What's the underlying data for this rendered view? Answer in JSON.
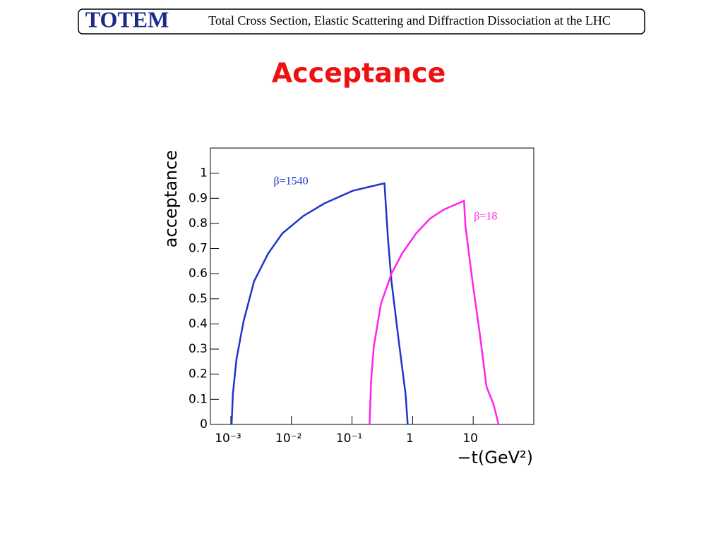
{
  "header": {
    "logo": "TOTEM",
    "text": "Total Cross Section, Elastic Scattering and Diffraction Dissociation at the LHC"
  },
  "chart_data": {
    "type": "line",
    "title": "Acceptance",
    "x_label": "−t(GeV²)",
    "y_label": "acceptance",
    "xscale": "log",
    "xlim": [
      0.00046,
      100
    ],
    "ylim": [
      0,
      1.1
    ],
    "xticks": [
      {
        "value": 0.001,
        "label": "10⁻³"
      },
      {
        "value": 0.01,
        "label": "10⁻²"
      },
      {
        "value": 0.1,
        "label": "10⁻¹"
      },
      1,
      10
    ],
    "yticks": [
      0,
      0.1,
      0.2,
      0.3,
      0.4,
      0.5,
      0.6,
      0.7,
      0.8,
      0.9,
      1
    ],
    "series": [
      {
        "name": "β=1540",
        "color": "#1f35cc",
        "x": [
          0.00103,
          0.00108,
          0.00124,
          0.00162,
          0.00242,
          0.00413,
          0.00706,
          0.0158,
          0.0352,
          0.103,
          0.343,
          0.392,
          0.448,
          0.585,
          0.766,
          0.83
        ],
        "values": [
          0,
          0.12,
          0.26,
          0.41,
          0.57,
          0.68,
          0.76,
          0.83,
          0.88,
          0.93,
          0.96,
          0.74,
          0.57,
          0.34,
          0.12,
          0
        ]
      },
      {
        "name": "β=18",
        "color": "#ff22ee",
        "x": [
          0.195,
          0.206,
          0.229,
          0.3,
          0.448,
          0.67,
          1.14,
          1.95,
          3.33,
          7.06,
          7.45,
          9.72,
          12.7,
          16.6,
          21.7,
          26.2
        ],
        "values": [
          0,
          0.17,
          0.31,
          0.48,
          0.6,
          0.68,
          0.76,
          0.82,
          0.856,
          0.89,
          0.79,
          0.57,
          0.37,
          0.15,
          0.08,
          0
        ]
      }
    ]
  }
}
